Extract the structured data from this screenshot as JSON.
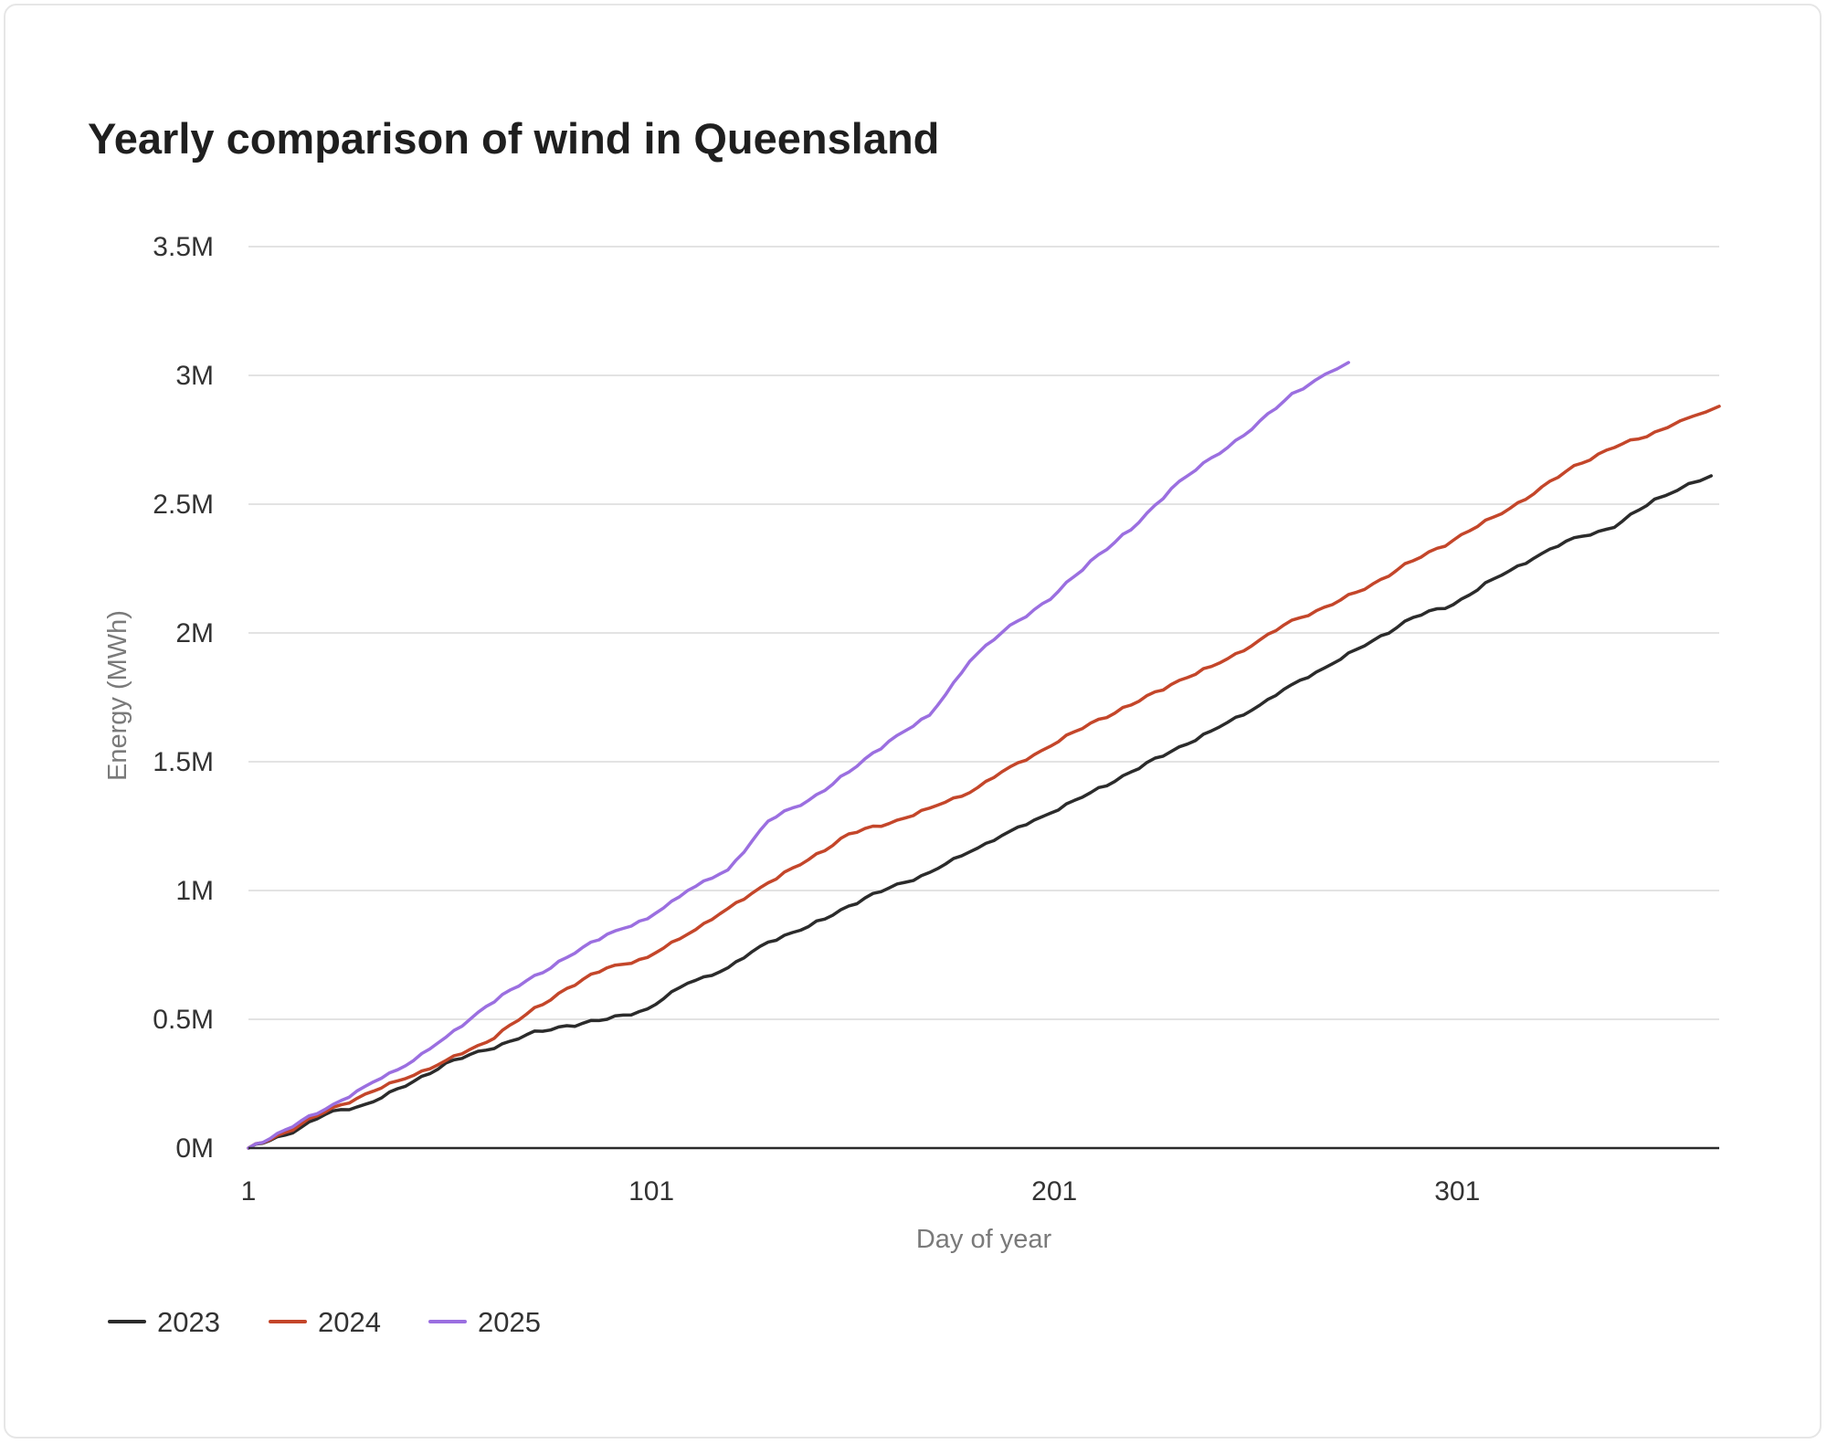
{
  "chart_data": {
    "type": "line",
    "title": "Yearly comparison of wind in Queensland",
    "xlabel": "Day of year",
    "ylabel": "Energy (MWh)",
    "xlim": [
      1,
      366
    ],
    "ylim": [
      0,
      3500000
    ],
    "x_ticks": [
      1,
      101,
      201,
      301
    ],
    "x_tick_labels": [
      "1",
      "101",
      "201",
      "301"
    ],
    "y_ticks": [
      0,
      500000,
      1000000,
      1500000,
      2000000,
      2500000,
      3000000,
      3500000
    ],
    "y_tick_labels": [
      "0M",
      "0.5M",
      "1M",
      "1.5M",
      "2M",
      "2.5M",
      "3M",
      "3.5M"
    ],
    "grid": true,
    "legend_position": "bottom-left",
    "series": [
      {
        "name": "2023",
        "color": "#2b2b2b",
        "x": [
          1,
          10,
          20,
          30,
          40,
          50,
          60,
          70,
          80,
          90,
          100,
          110,
          120,
          130,
          140,
          150,
          160,
          170,
          180,
          190,
          200,
          210,
          220,
          230,
          240,
          250,
          260,
          270,
          280,
          290,
          300,
          310,
          320,
          330,
          340,
          350,
          364
        ],
        "values": [
          0,
          50000,
          130000,
          170000,
          240000,
          330000,
          380000,
          440000,
          475000,
          500000,
          540000,
          640000,
          700000,
          800000,
          860000,
          940000,
          1010000,
          1070000,
          1150000,
          1230000,
          1300000,
          1380000,
          1460000,
          1540000,
          1620000,
          1700000,
          1800000,
          1880000,
          1970000,
          2060000,
          2110000,
          2210000,
          2290000,
          2370000,
          2410000,
          2520000,
          2610000
        ]
      },
      {
        "name": "2024",
        "color": "#c4462a",
        "x": [
          1,
          10,
          20,
          30,
          40,
          50,
          60,
          70,
          80,
          90,
          100,
          110,
          120,
          130,
          140,
          150,
          160,
          170,
          180,
          190,
          200,
          210,
          220,
          230,
          240,
          250,
          260,
          270,
          280,
          290,
          300,
          310,
          320,
          330,
          340,
          350,
          366
        ],
        "values": [
          0,
          60000,
          140000,
          210000,
          270000,
          340000,
          410000,
          520000,
          620000,
          700000,
          740000,
          830000,
          930000,
          1030000,
          1120000,
          1220000,
          1260000,
          1320000,
          1380000,
          1480000,
          1560000,
          1650000,
          1720000,
          1800000,
          1870000,
          1950000,
          2050000,
          2110000,
          2190000,
          2280000,
          2360000,
          2450000,
          2540000,
          2650000,
          2720000,
          2780000,
          2880000
        ]
      },
      {
        "name": "2025",
        "color": "#9b6fe0",
        "x": [
          1,
          10,
          20,
          30,
          40,
          50,
          60,
          70,
          80,
          90,
          100,
          110,
          120,
          130,
          140,
          150,
          160,
          170,
          180,
          190,
          200,
          210,
          220,
          230,
          240,
          250,
          260,
          274
        ],
        "values": [
          0,
          70000,
          150000,
          240000,
          320000,
          430000,
          550000,
          650000,
          740000,
          830000,
          890000,
          1000000,
          1080000,
          1270000,
          1350000,
          1460000,
          1580000,
          1680000,
          1890000,
          2030000,
          2130000,
          2280000,
          2400000,
          2560000,
          2680000,
          2790000,
          2930000,
          3050000
        ]
      }
    ]
  }
}
